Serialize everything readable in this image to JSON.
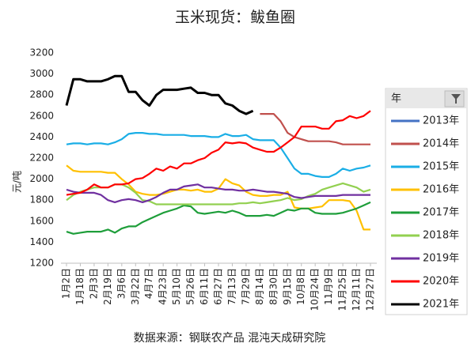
{
  "chart_data": {
    "type": "line",
    "title": "玉米现货：鲅鱼圈",
    "y_label": "元/吨",
    "source": "数据来源：钢联农产品 混沌天成研究院",
    "legend_title": "年",
    "ylim": [
      1200,
      3200
    ],
    "yticks": [
      1200,
      1400,
      1600,
      1800,
      2000,
      2200,
      2400,
      2600,
      2800,
      3000,
      3200
    ],
    "grid": false,
    "categories": [
      "1月2日",
      null,
      "1月18日",
      null,
      "2月3日",
      null,
      "2月19日",
      null,
      "3月6日",
      null,
      "3月22日",
      null,
      "4月7日",
      null,
      "4月23日",
      null,
      "5月10日",
      null,
      "5月26日",
      null,
      "6月11日",
      null,
      "6月27日",
      null,
      "7月13日",
      null,
      "7月29日",
      null,
      "8月14日",
      null,
      "8月30日",
      null,
      "9月15日",
      null,
      "10月8日",
      null,
      "10月24日",
      null,
      "11月9日",
      null,
      "11月25日",
      null,
      "12月11日",
      null,
      "12月27日"
    ],
    "series": [
      {
        "name": "2013年",
        "color": "#4472c4",
        "values": [
          null,
          null,
          null,
          null,
          null,
          null,
          null,
          null,
          null,
          null,
          null,
          null,
          null,
          null,
          null,
          null,
          null,
          null,
          null,
          null,
          null,
          null,
          null,
          null,
          null,
          null,
          null,
          null,
          null,
          null,
          null,
          null,
          null,
          null,
          null,
          null,
          null,
          null,
          null,
          null,
          null,
          null,
          null,
          null,
          null
        ]
      },
      {
        "name": "2014年",
        "color": "#c0504d",
        "values": [
          null,
          null,
          null,
          null,
          null,
          null,
          null,
          null,
          null,
          null,
          null,
          null,
          null,
          null,
          null,
          null,
          null,
          null,
          null,
          null,
          null,
          null,
          null,
          null,
          null,
          null,
          null,
          null,
          2620,
          2620,
          2620,
          2550,
          2440,
          2400,
          2380,
          2360,
          2360,
          2360,
          2360,
          2350,
          2330,
          2330,
          2330,
          2330,
          2330
        ]
      },
      {
        "name": "2015年",
        "color": "#1aaee6",
        "values": [
          2330,
          2340,
          2340,
          2330,
          2340,
          2340,
          2330,
          2350,
          2380,
          2430,
          2440,
          2440,
          2430,
          2430,
          2420,
          2420,
          2420,
          2420,
          2410,
          2410,
          2410,
          2400,
          2400,
          2430,
          2410,
          2410,
          2420,
          2380,
          2370,
          2370,
          2370,
          2300,
          2200,
          2100,
          2050,
          2050,
          2030,
          2020,
          2020,
          2050,
          2100,
          2080,
          2100,
          2110,
          2130
        ]
      },
      {
        "name": "2016年",
        "color": "#ffc000",
        "values": [
          2130,
          2080,
          2070,
          2070,
          2070,
          2070,
          2060,
          2060,
          2000,
          1950,
          1880,
          1860,
          1850,
          1850,
          1860,
          1880,
          1900,
          1900,
          1890,
          1900,
          1880,
          1880,
          1910,
          2000,
          1960,
          1940,
          1880,
          1850,
          1840,
          1840,
          1850,
          1850,
          1880,
          1730,
          1720,
          1720,
          1730,
          1740,
          1800,
          1800,
          1800,
          1790,
          1700,
          1520,
          1520
        ]
      },
      {
        "name": "2017年",
        "color": "#1e9e3a",
        "values": [
          1500,
          1480,
          1490,
          1500,
          1500,
          1500,
          1520,
          1490,
          1530,
          1550,
          1550,
          1590,
          1620,
          1650,
          1680,
          1700,
          1720,
          1750,
          1740,
          1680,
          1670,
          1680,
          1690,
          1680,
          1700,
          1680,
          1650,
          1650,
          1650,
          1660,
          1650,
          1680,
          1710,
          1700,
          1720,
          1720,
          1680,
          1670,
          1670,
          1670,
          1680,
          1700,
          1720,
          1750,
          1780
        ]
      },
      {
        "name": "2018年",
        "color": "#92d050",
        "values": [
          1800,
          1850,
          1880,
          1900,
          1920,
          1920,
          1920,
          1950,
          1950,
          1920,
          1870,
          1800,
          1790,
          1760,
          1760,
          1760,
          1760,
          1760,
          1760,
          1760,
          1760,
          1760,
          1760,
          1760,
          1760,
          1770,
          1770,
          1780,
          1770,
          1780,
          1790,
          1800,
          1820,
          1800,
          1810,
          1840,
          1860,
          1900,
          1920,
          1940,
          1960,
          1940,
          1920,
          1880,
          1900
        ]
      },
      {
        "name": "2019年",
        "color": "#7030a0",
        "values": [
          1900,
          1880,
          1870,
          1870,
          1870,
          1850,
          1800,
          1780,
          1800,
          1810,
          1800,
          1780,
          1800,
          1830,
          1870,
          1900,
          1900,
          1930,
          1940,
          1950,
          1920,
          1920,
          1910,
          1900,
          1900,
          1890,
          1890,
          1900,
          1890,
          1880,
          1880,
          1870,
          1860,
          1830,
          1820,
          1830,
          1840,
          1840,
          1840,
          1840,
          1850,
          1850,
          1850,
          1850,
          1850
        ]
      },
      {
        "name": "2020年",
        "color": "#ff0000",
        "values": [
          1850,
          1860,
          1870,
          1900,
          1950,
          1920,
          1920,
          1950,
          1950,
          1960,
          2000,
          2010,
          2050,
          2100,
          2080,
          2120,
          2100,
          2150,
          2150,
          2180,
          2200,
          2250,
          2280,
          2350,
          2340,
          2350,
          2340,
          2300,
          2280,
          2260,
          2260,
          2300,
          2350,
          2400,
          2500,
          2500,
          2500,
          2480,
          2480,
          2550,
          2560,
          2600,
          2580,
          2600,
          2650
        ]
      },
      {
        "name": "2021年",
        "color": "#000000",
        "values": [
          2700,
          2950,
          2950,
          2930,
          2930,
          2930,
          2950,
          2980,
          2980,
          2830,
          2830,
          2750,
          2700,
          2800,
          2850,
          2850,
          2850,
          2860,
          2870,
          2820,
          2820,
          2800,
          2800,
          2720,
          2700,
          2650,
          2620,
          2650,
          null,
          null,
          null,
          null,
          null,
          null,
          null,
          null,
          null,
          null,
          null,
          null,
          null,
          null,
          null,
          null,
          null
        ]
      }
    ]
  }
}
